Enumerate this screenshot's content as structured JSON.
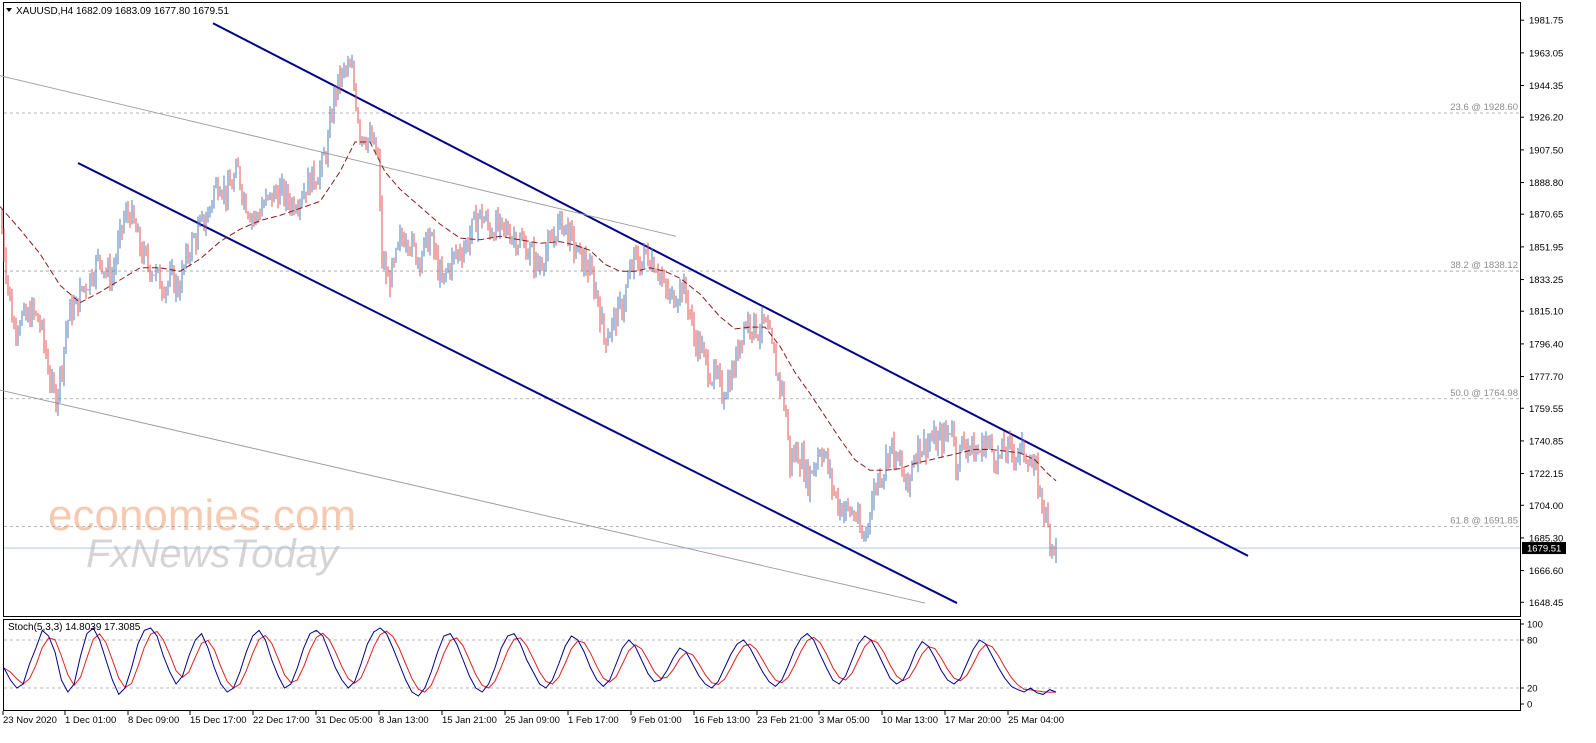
{
  "header": {
    "symbol": "XAUUSD,H4",
    "ohlc": "1682.09 1683.09 1677.80 1679.51"
  },
  "indicator": {
    "label": "Stoch(5,3,3) 14.8039 17.3085",
    "levels": [
      "100",
      "80",
      "20",
      "0"
    ]
  },
  "watermark": {
    "line1": "economies.com",
    "line2": "FxNewsToday"
  },
  "colors": {
    "bull": "#4f7fb8",
    "bear": "#e15050",
    "ma": "#8b1a1a",
    "channel": "#00008b",
    "stoch_main": "#00008b",
    "stoch_signal": "#e02020",
    "price_line": "#9fc3d9"
  },
  "chart_data": {
    "type": "candlestick",
    "title": "XAUUSD,H4",
    "ylim": [
      1648.45,
      1991
    ],
    "y_ticks": [
      "1981.75",
      "1963.05",
      "1944.35",
      "1926.20",
      "1907.50",
      "1888.80",
      "1870.65",
      "1851.95",
      "1833.25",
      "1815.10",
      "1796.40",
      "1777.70",
      "1759.55",
      "1740.85",
      "1722.15",
      "1704.00",
      "1685.30",
      "1666.60",
      "1648.45"
    ],
    "x_labels": [
      "23 Nov 2020",
      "1 Dec 01:00",
      "8 Dec 09:00",
      "15 Dec 17:00",
      "22 Dec 17:00",
      "31 Dec 05:00",
      "8 Jan 13:00",
      "15 Jan 21:00",
      "25 Jan 09:00",
      "1 Feb 17:00",
      "9 Feb 01:00",
      "16 Feb 13:00",
      "23 Feb 21:00",
      "3 Mar 05:00",
      "10 Mar 13:00",
      "17 Mar 20:00",
      "25 Mar 04:00"
    ],
    "current_price": "1679.51",
    "fib_levels": [
      {
        "label": "23.6 @ 1928.60",
        "value": 1928.6
      },
      {
        "label": "38.2 @ 1838.12",
        "value": 1838.12
      },
      {
        "label": "50.0 @ 1764.98",
        "value": 1764.98
      },
      {
        "label": "61.8 @ 1691.85",
        "value": 1691.85
      }
    ],
    "close_path": [
      [
        0,
        1870
      ],
      [
        8,
        1830
      ],
      [
        14,
        1805
      ],
      [
        20,
        1812
      ],
      [
        26,
        1810
      ],
      [
        32,
        1815
      ],
      [
        40,
        1808
      ],
      [
        46,
        1790
      ],
      [
        52,
        1770
      ],
      [
        56,
        1766
      ],
      [
        62,
        1785
      ],
      [
        66,
        1805
      ],
      [
        70,
        1815
      ],
      [
        76,
        1818
      ],
      [
        82,
        1828
      ],
      [
        88,
        1832
      ],
      [
        94,
        1840
      ],
      [
        100,
        1846
      ],
      [
        106,
        1838
      ],
      [
        112,
        1835
      ],
      [
        118,
        1852
      ],
      [
        124,
        1868
      ],
      [
        130,
        1872
      ],
      [
        136,
        1860
      ],
      [
        142,
        1848
      ],
      [
        148,
        1842
      ],
      [
        154,
        1838
      ],
      [
        160,
        1832
      ],
      [
        166,
        1830
      ],
      [
        172,
        1834
      ],
      [
        178,
        1828
      ],
      [
        184,
        1840
      ],
      [
        190,
        1852
      ],
      [
        196,
        1858
      ],
      [
        202,
        1865
      ],
      [
        208,
        1870
      ],
      [
        214,
        1885
      ],
      [
        220,
        1890
      ],
      [
        226,
        1882
      ],
      [
        232,
        1888
      ],
      [
        238,
        1895
      ],
      [
        244,
        1880
      ],
      [
        250,
        1872
      ],
      [
        256,
        1868
      ],
      [
        262,
        1876
      ],
      [
        268,
        1878
      ],
      [
        274,
        1882
      ],
      [
        280,
        1884
      ],
      [
        286,
        1880
      ],
      [
        292,
        1877
      ],
      [
        298,
        1880
      ],
      [
        304,
        1885
      ],
      [
        310,
        1890
      ],
      [
        316,
        1893
      ],
      [
        322,
        1898
      ],
      [
        328,
        1912
      ],
      [
        334,
        1938
      ],
      [
        340,
        1948
      ],
      [
        346,
        1953
      ],
      [
        352,
        1952
      ],
      [
        356,
        1936
      ],
      [
        360,
        1918
      ],
      [
        366,
        1915
      ],
      [
        372,
        1912
      ],
      [
        378,
        1902
      ],
      [
        382,
        1845
      ],
      [
        388,
        1832
      ],
      [
        394,
        1840
      ],
      [
        400,
        1855
      ],
      [
        406,
        1860
      ],
      [
        412,
        1852
      ],
      [
        418,
        1846
      ],
      [
        424,
        1851
      ],
      [
        430,
        1858
      ],
      [
        436,
        1845
      ],
      [
        442,
        1830
      ],
      [
        448,
        1840
      ],
      [
        454,
        1846
      ],
      [
        460,
        1850
      ],
      [
        466,
        1853
      ],
      [
        472,
        1862
      ],
      [
        478,
        1870
      ],
      [
        484,
        1868
      ],
      [
        490,
        1862
      ],
      [
        496,
        1864
      ],
      [
        502,
        1860
      ],
      [
        508,
        1862
      ],
      [
        514,
        1858
      ],
      [
        520,
        1855
      ],
      [
        526,
        1852
      ],
      [
        532,
        1847
      ],
      [
        538,
        1840
      ],
      [
        544,
        1848
      ],
      [
        550,
        1852
      ],
      [
        556,
        1862
      ],
      [
        562,
        1866
      ],
      [
        568,
        1860
      ],
      [
        574,
        1852
      ],
      [
        580,
        1846
      ],
      [
        586,
        1842
      ],
      [
        592,
        1834
      ],
      [
        598,
        1822
      ],
      [
        604,
        1800
      ],
      [
        610,
        1805
      ],
      [
        616,
        1812
      ],
      [
        622,
        1818
      ],
      [
        628,
        1832
      ],
      [
        634,
        1845
      ],
      [
        640,
        1842
      ],
      [
        646,
        1848
      ],
      [
        652,
        1845
      ],
      [
        658,
        1840
      ],
      [
        664,
        1828
      ],
      [
        670,
        1822
      ],
      [
        676,
        1825
      ],
      [
        682,
        1830
      ],
      [
        688,
        1820
      ],
      [
        694,
        1800
      ],
      [
        700,
        1795
      ],
      [
        706,
        1785
      ],
      [
        712,
        1778
      ],
      [
        718,
        1775
      ],
      [
        722,
        1768
      ],
      [
        728,
        1775
      ],
      [
        734,
        1782
      ],
      [
        740,
        1800
      ],
      [
        746,
        1810
      ],
      [
        752,
        1808
      ],
      [
        758,
        1804
      ],
      [
        764,
        1808
      ],
      [
        770,
        1798
      ],
      [
        776,
        1782
      ],
      [
        782,
        1770
      ],
      [
        786,
        1755
      ],
      [
        790,
        1728
      ],
      [
        796,
        1735
      ],
      [
        802,
        1730
      ],
      [
        808,
        1718
      ],
      [
        812,
        1725
      ],
      [
        816,
        1730
      ],
      [
        820,
        1738
      ],
      [
        826,
        1730
      ],
      [
        832,
        1715
      ],
      [
        838,
        1705
      ],
      [
        844,
        1702
      ],
      [
        850,
        1700
      ],
      [
        856,
        1698
      ],
      [
        862,
        1684
      ],
      [
        866,
        1690
      ],
      [
        870,
        1702
      ],
      [
        874,
        1712
      ],
      [
        878,
        1720
      ],
      [
        884,
        1725
      ],
      [
        888,
        1735
      ],
      [
        892,
        1738
      ],
      [
        896,
        1728
      ],
      [
        900,
        1728
      ],
      [
        904,
        1718
      ],
      [
        908,
        1712
      ],
      [
        912,
        1730
      ],
      [
        918,
        1738
      ],
      [
        924,
        1738
      ],
      [
        930,
        1742
      ],
      [
        936,
        1740
      ],
      [
        942,
        1742
      ],
      [
        948,
        1745
      ],
      [
        952,
        1752
      ],
      [
        956,
        1728
      ],
      [
        962,
        1738
      ],
      [
        968,
        1740
      ],
      [
        974,
        1734
      ],
      [
        980,
        1735
      ],
      [
        986,
        1742
      ],
      [
        992,
        1735
      ],
      [
        998,
        1730
      ],
      [
        1004,
        1736
      ],
      [
        1010,
        1735
      ],
      [
        1016,
        1734
      ],
      [
        1022,
        1735
      ],
      [
        1028,
        1733
      ],
      [
        1032,
        1725
      ],
      [
        1036,
        1722
      ],
      [
        1040,
        1710
      ],
      [
        1044,
        1702
      ],
      [
        1048,
        1690
      ],
      [
        1052,
        1682
      ],
      [
        1056,
        1680
      ]
    ],
    "ma_path": [
      [
        0,
        1875
      ],
      [
        20,
        1862
      ],
      [
        40,
        1848
      ],
      [
        60,
        1830
      ],
      [
        80,
        1820
      ],
      [
        100,
        1826
      ],
      [
        120,
        1833
      ],
      [
        140,
        1840
      ],
      [
        160,
        1840
      ],
      [
        180,
        1838
      ],
      [
        200,
        1845
      ],
      [
        220,
        1855
      ],
      [
        240,
        1862
      ],
      [
        260,
        1867
      ],
      [
        280,
        1870
      ],
      [
        300,
        1874
      ],
      [
        320,
        1878
      ],
      [
        340,
        1895
      ],
      [
        355,
        1912
      ],
      [
        370,
        1912
      ],
      [
        385,
        1895
      ],
      [
        400,
        1885
      ],
      [
        420,
        1875
      ],
      [
        440,
        1865
      ],
      [
        460,
        1857
      ],
      [
        480,
        1856
      ],
      [
        500,
        1858
      ],
      [
        520,
        1856
      ],
      [
        540,
        1854
      ],
      [
        560,
        1855
      ],
      [
        575,
        1853
      ],
      [
        590,
        1850
      ],
      [
        605,
        1842
      ],
      [
        620,
        1838
      ],
      [
        635,
        1838
      ],
      [
        650,
        1840
      ],
      [
        665,
        1838
      ],
      [
        680,
        1834
      ],
      [
        700,
        1825
      ],
      [
        720,
        1812
      ],
      [
        735,
        1805
      ],
      [
        750,
        1806
      ],
      [
        765,
        1806
      ],
      [
        780,
        1795
      ],
      [
        795,
        1780
      ],
      [
        810,
        1768
      ],
      [
        825,
        1755
      ],
      [
        840,
        1742
      ],
      [
        855,
        1730
      ],
      [
        870,
        1724
      ],
      [
        885,
        1724
      ],
      [
        900,
        1725
      ],
      [
        915,
        1728
      ],
      [
        930,
        1730
      ],
      [
        945,
        1732
      ],
      [
        960,
        1734
      ],
      [
        975,
        1736
      ],
      [
        990,
        1736
      ],
      [
        1005,
        1735
      ],
      [
        1020,
        1734
      ],
      [
        1035,
        1730
      ],
      [
        1048,
        1722
      ],
      [
        1056,
        1718
      ]
    ],
    "channel_lines": [
      {
        "name": "upper",
        "from": [
          213,
          1980
        ],
        "to": [
          1248,
          1675
        ]
      },
      {
        "name": "lower",
        "from": [
          78,
          1900
        ],
        "to": [
          957,
          1648
        ]
      },
      {
        "name": "thin-upper",
        "from": [
          0,
          1950
        ],
        "to": [
          676,
          1858
        ]
      },
      {
        "name": "thin-lower",
        "from": [
          0,
          1770
        ],
        "to": [
          925,
          1648
        ]
      }
    ],
    "stochastic": {
      "ylim": [
        0,
        100
      ],
      "main": [
        45,
        30,
        20,
        25,
        50,
        70,
        92,
        85,
        65,
        30,
        15,
        25,
        60,
        88,
        95,
        80,
        55,
        30,
        12,
        20,
        45,
        75,
        92,
        95,
        85,
        60,
        40,
        25,
        35,
        60,
        80,
        88,
        70,
        45,
        25,
        15,
        20,
        40,
        65,
        85,
        92,
        80,
        55,
        35,
        20,
        25,
        45,
        70,
        88,
        92,
        85,
        65,
        45,
        30,
        20,
        28,
        50,
        75,
        90,
        95,
        88,
        70,
        50,
        30,
        15,
        10,
        20,
        40,
        65,
        85,
        88,
        75,
        55,
        35,
        20,
        15,
        25,
        45,
        70,
        85,
        88,
        75,
        55,
        40,
        25,
        20,
        30,
        50,
        72,
        85,
        80,
        65,
        45,
        30,
        22,
        30,
        50,
        70,
        80,
        72,
        55,
        38,
        28,
        30,
        42,
        58,
        70,
        65,
        50,
        35,
        25,
        20,
        28,
        45,
        62,
        75,
        80,
        70,
        55,
        40,
        28,
        22,
        30,
        48,
        68,
        82,
        88,
        80,
        62,
        45,
        30,
        25,
        35,
        55,
        75,
        85,
        80,
        65,
        48,
        32,
        25,
        30,
        45,
        65,
        78,
        72,
        58,
        42,
        30,
        25,
        32,
        50,
        68,
        80,
        75,
        60,
        45,
        32,
        22,
        18,
        15,
        20,
        14,
        12,
        18,
        15
      ]
    }
  }
}
